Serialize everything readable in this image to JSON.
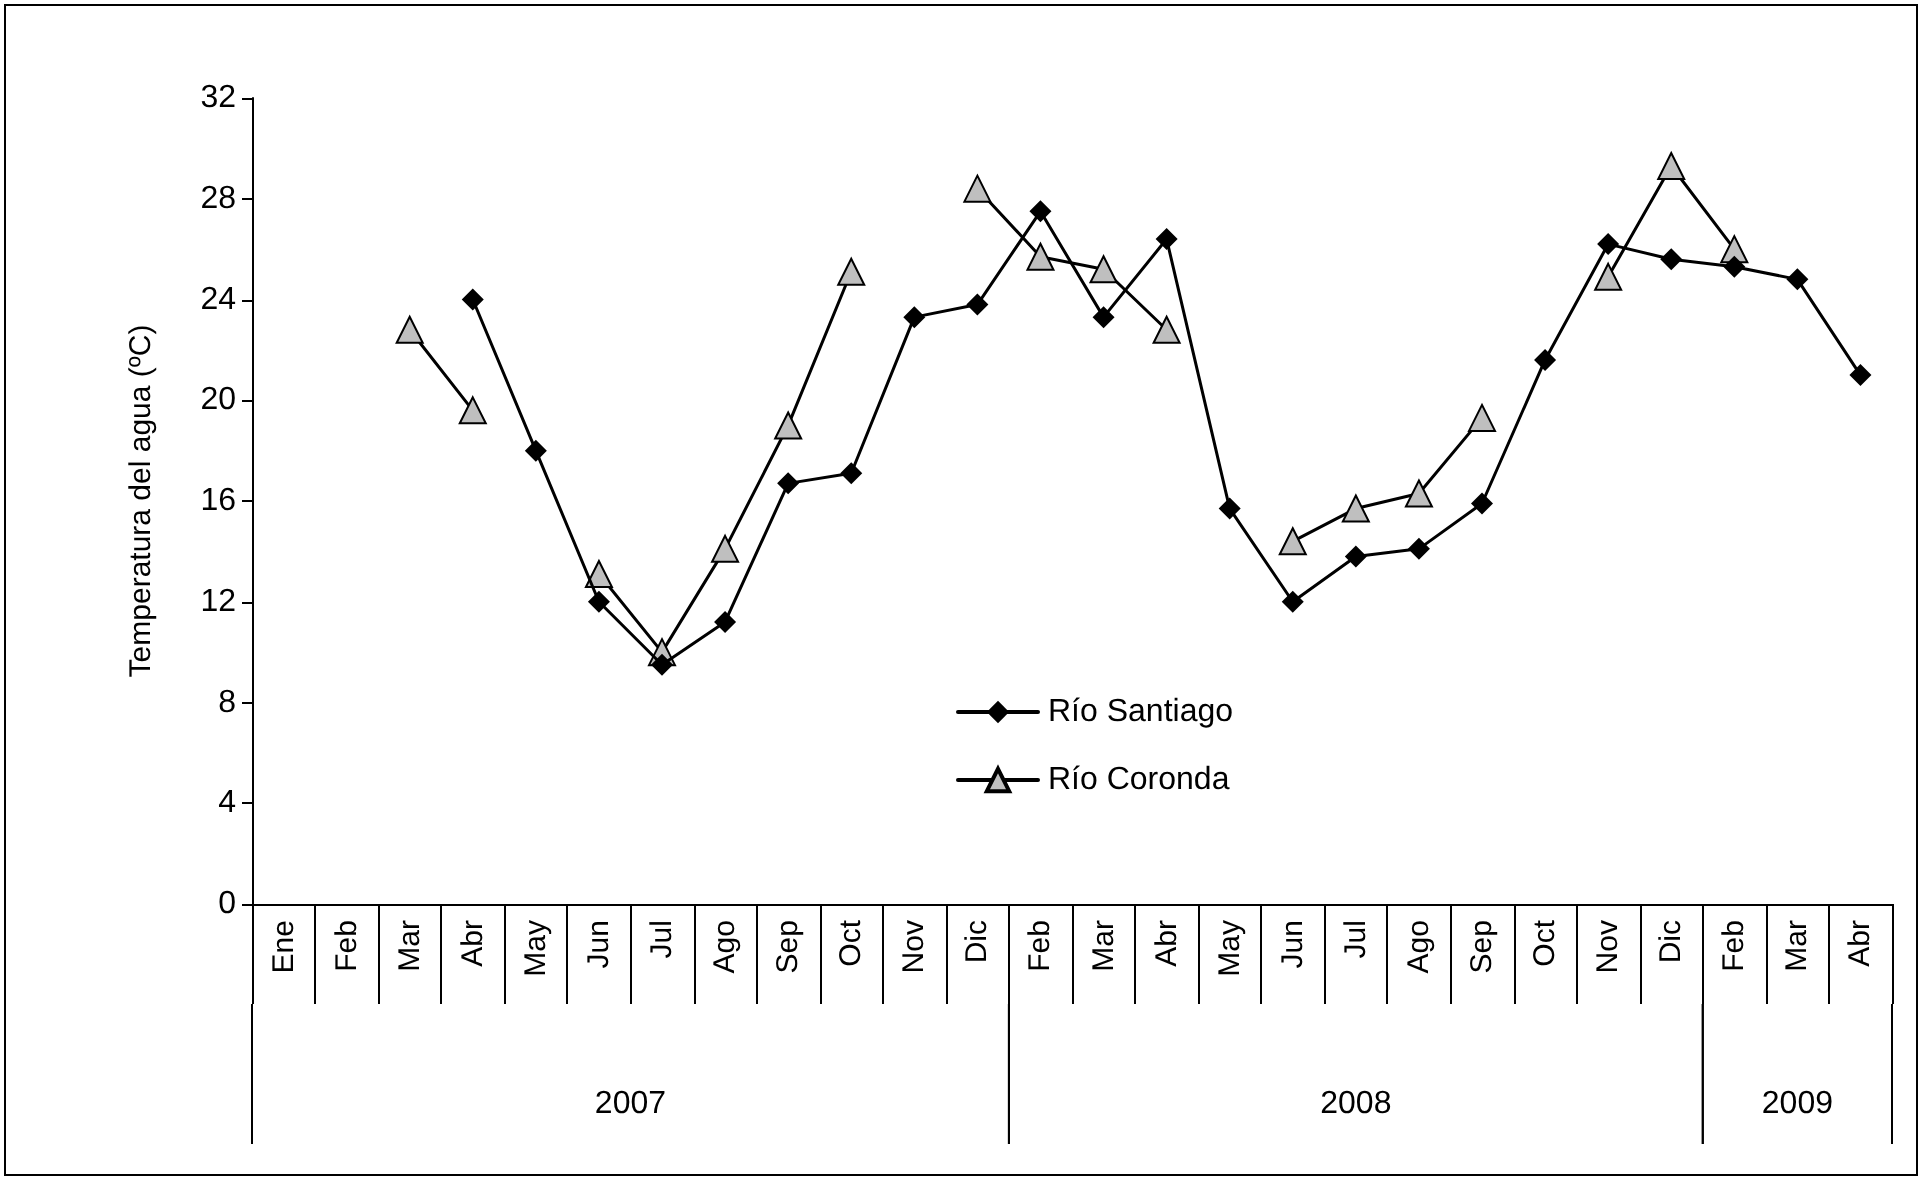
{
  "chart_data": {
    "type": "line",
    "ylabel": "Temperatura del agua (ºC)",
    "categories": [
      "Ene",
      "Feb",
      "Mar",
      "Abr",
      "May",
      "Jun",
      "Jul",
      "Ago",
      "Sep",
      "Oct",
      "Nov",
      "Dic",
      "Feb",
      "Mar",
      "Abr",
      "May",
      "Jun",
      "Jul",
      "Ago",
      "Sep",
      "Oct",
      "Nov",
      "Dic",
      "Feb",
      "Mar",
      "Abr"
    ],
    "annotations": [
      "2007",
      "2008",
      "2009"
    ],
    "series": [
      {
        "name": "Río Santiago",
        "color": "#000000",
        "marker": "diamond",
        "values": [
          null,
          null,
          null,
          24,
          18,
          12,
          9.5,
          11.2,
          16.7,
          17.1,
          23.3,
          23.8,
          27.5,
          23.3,
          26.4,
          15.7,
          12,
          13.8,
          14.1,
          15.9,
          21.6,
          26.2,
          25.6,
          25.3,
          24.8,
          21
        ]
      },
      {
        "name": "Río Coronda",
        "color": "#bfbfbf",
        "marker": "triangle",
        "values": [
          null,
          null,
          22.8,
          19.6,
          null,
          13.1,
          10,
          14.1,
          19,
          25.1,
          null,
          28.4,
          25.7,
          25.2,
          22.8,
          null,
          14.4,
          15.7,
          16.3,
          19.3,
          null,
          24.9,
          29.3,
          26,
          null,
          null
        ]
      }
    ],
    "ylim": [
      0,
      32
    ],
    "yticks": [
      0,
      4,
      8,
      12,
      16,
      20,
      24,
      28,
      32
    ],
    "grid": false,
    "legend": "bottom",
    "line_style": "solid"
  }
}
